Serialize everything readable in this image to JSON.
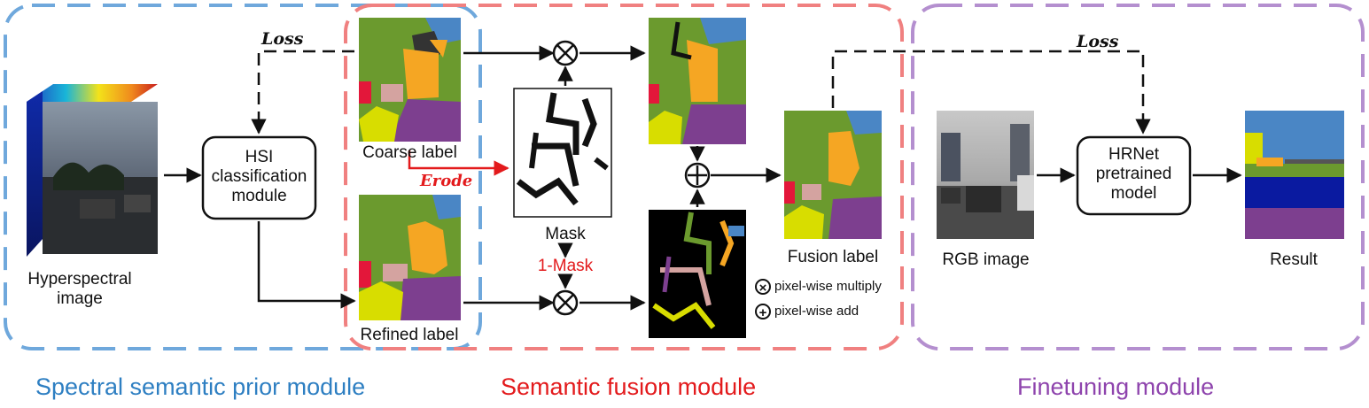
{
  "modules": {
    "spectral": {
      "title": "Spectral semantic prior module",
      "color": "#3b8ccf"
    },
    "fusion": {
      "title": "Semantic fusion module",
      "color": "#e84b4b"
    },
    "finetune": {
      "title": "Finetuning module",
      "color": "#8e5bb5"
    }
  },
  "nodes": {
    "hyperspectral": "Hyperspectral image",
    "hsi_box": [
      "HSI",
      "classification",
      "module"
    ],
    "coarse_label": "Coarse label",
    "refined_label": "Refined label",
    "mask": "Mask",
    "one_minus_mask": "1-Mask",
    "fusion_label": "Fusion label",
    "rgb_image": "RGB image",
    "hrnet_box": [
      "HRNet",
      "pretrained",
      "model"
    ],
    "result": "Result"
  },
  "edges": {
    "loss_left": "Loss",
    "loss_right": "Loss",
    "erode": "Erode"
  },
  "legend": {
    "multiply": "pixel-wise multiply",
    "add": "pixel-wise add"
  },
  "colors": {
    "olive": "#6b9a2e",
    "orange": "#f5a623",
    "purple": "#7d3f8f",
    "yellow": "#d8dd00",
    "pink": "#d4a3a0",
    "red": "#e3173a",
    "blue": "#4a86c5",
    "darkblue": "#0a1aa0",
    "gray": "#555555"
  }
}
